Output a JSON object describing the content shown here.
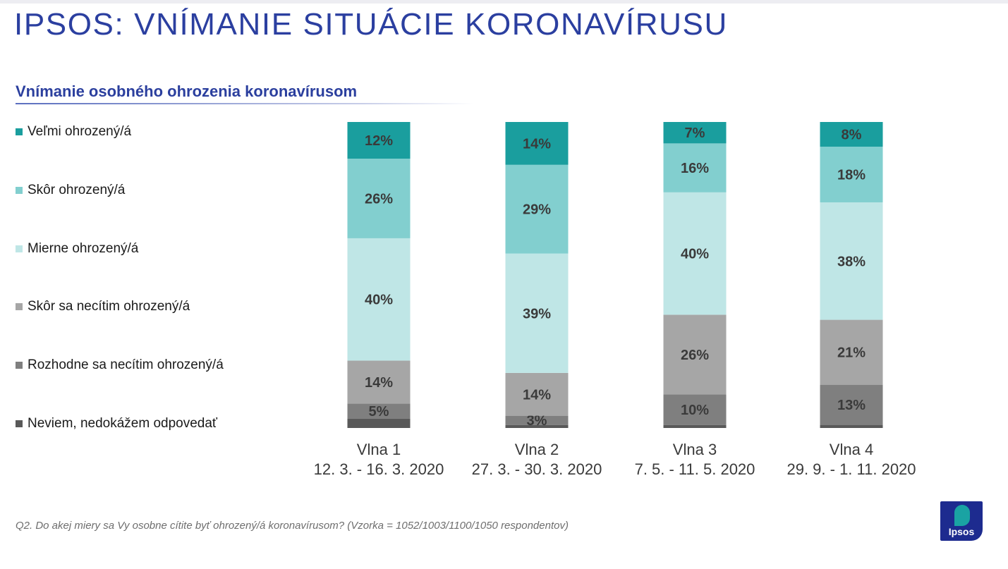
{
  "page": {
    "title": "IPSOS: VNÍMANIE SITUÁCIE KORONAVÍRUSU",
    "subtitle": "Vnímanie osobného ohrozenia koronavírusom",
    "footnote": "Q2. Do akej miery sa Vy osobne cítite byť ohrozený/á koronavírusom? (Vzorka = 1052/1003/1100/1050 respondentov)",
    "logo_text": "Ipsos"
  },
  "chart_data": {
    "type": "bar",
    "stacked": true,
    "orientation": "vertical",
    "normalized_to_100": true,
    "legend_position": "left",
    "grid": false,
    "categories": [
      "Vlna 1",
      "Vlna 2",
      "Vlna 3",
      "Vlna 4"
    ],
    "category_dates": [
      "12. 3. - 16. 3. 2020",
      "27. 3. - 30. 3. 2020",
      "7. 5. - 11. 5. 2020",
      "29. 9. - 1. 11. 2020"
    ],
    "series": [
      {
        "name": "Veľmi ohrozený/á",
        "color": "#1a9e9e",
        "values": [
          12,
          14,
          7,
          8
        ],
        "labels": [
          "12%",
          "14%",
          "7%",
          "8%"
        ]
      },
      {
        "name": "Skôr ohrozený/á",
        "color": "#82cfcf",
        "values": [
          26,
          29,
          16,
          18
        ],
        "labels": [
          "26%",
          "29%",
          "16%",
          "18%"
        ]
      },
      {
        "name": "Mierne ohrozený/á",
        "color": "#bfe6e6",
        "values": [
          40,
          39,
          40,
          38
        ],
        "labels": [
          "40%",
          "39%",
          "40%",
          "38%"
        ]
      },
      {
        "name": "Skôr sa necítim ohrozený/á",
        "color": "#a6a6a6",
        "values": [
          14,
          14,
          26,
          21
        ],
        "labels": [
          "14%",
          "14%",
          "26%",
          "21%"
        ]
      },
      {
        "name": "Rozhodne sa necítim ohrozený/á",
        "color": "#7f7f7f",
        "values": [
          5,
          3,
          10,
          13
        ],
        "labels": [
          "5%",
          "3%",
          "10%",
          "13%"
        ]
      },
      {
        "name": "Neviem, nedokážem odpovedať",
        "color": "#595959",
        "values": [
          3,
          1,
          1,
          1
        ],
        "labels": [
          "",
          "",
          "",
          ""
        ]
      }
    ]
  }
}
